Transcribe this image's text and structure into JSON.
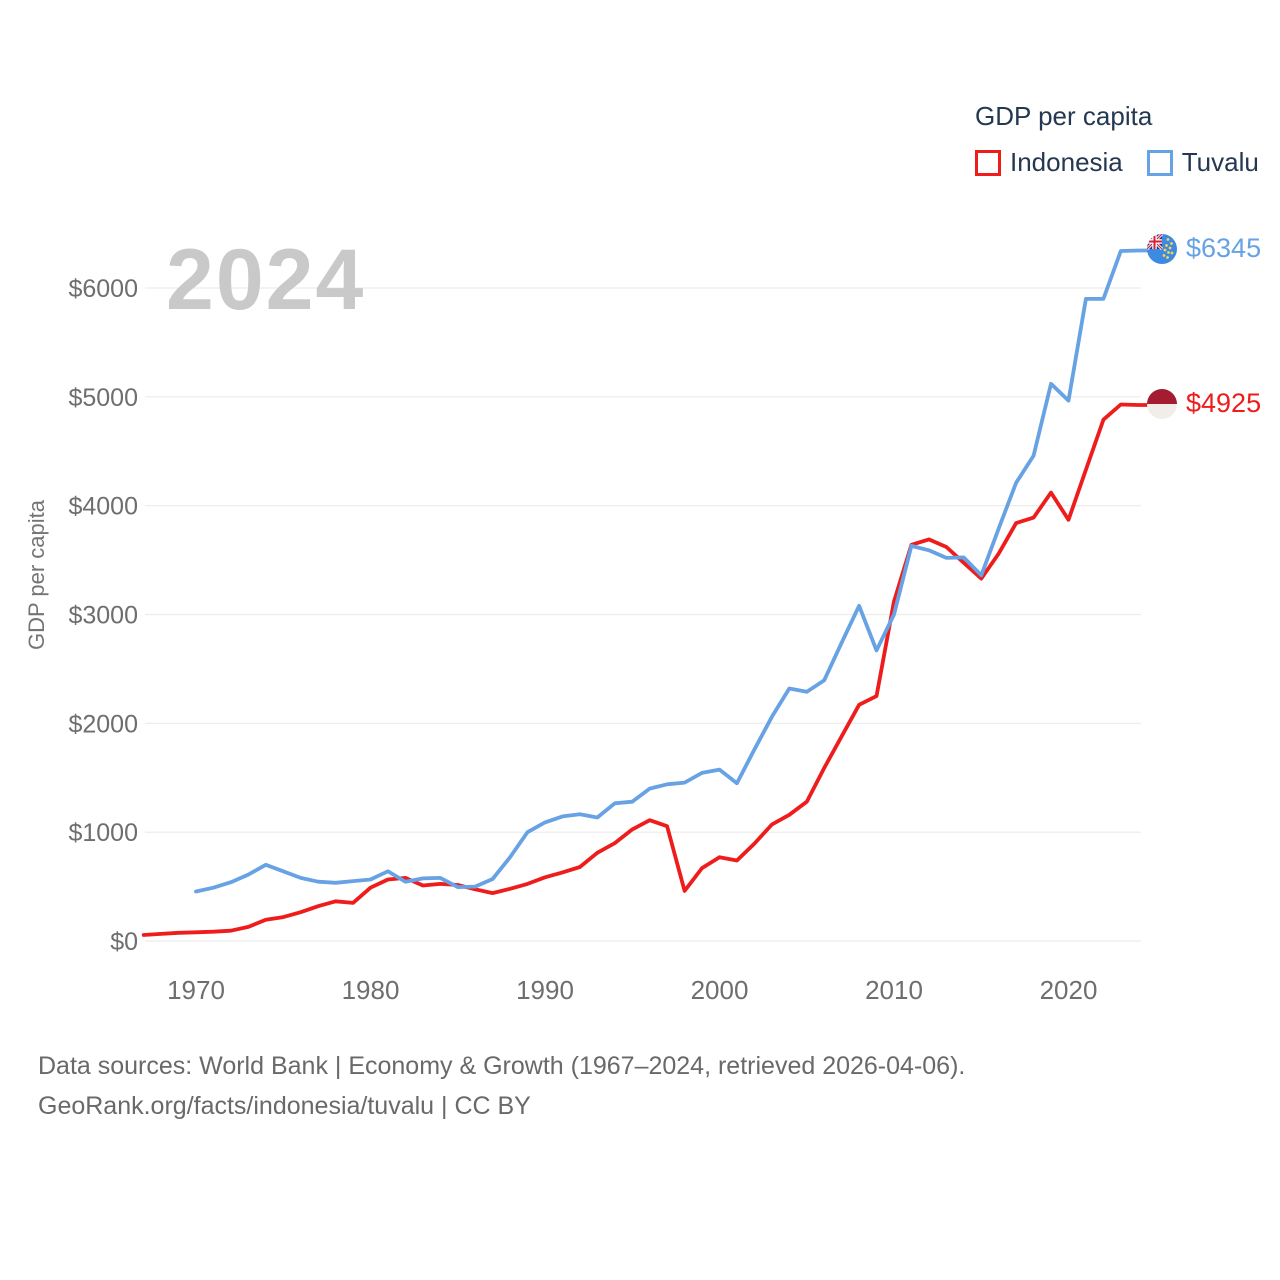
{
  "legend": {
    "title": "GDP per capita",
    "series": [
      {
        "label": "Indonesia",
        "color": "#ee1c1b"
      },
      {
        "label": "Tuvalu",
        "color": "#67a2e4"
      }
    ]
  },
  "watermark": "2024",
  "y_axis": {
    "label": "GDP per capita"
  },
  "end_labels": {
    "tuvalu": {
      "value": "$6345"
    },
    "indonesia": {
      "value": "$4925"
    }
  },
  "footer": {
    "line1": "Data sources: World Bank | Economy & Growth (1967–2024, retrieved 2026-04-06).",
    "line2": "GeoRank.org/facts/indonesia/tuvalu | CC BY"
  },
  "chart_data": {
    "type": "line",
    "title": "GDP per capita",
    "xlabel": "",
    "ylabel": "GDP per capita",
    "ylim": [
      0,
      6500
    ],
    "yticks": [
      0,
      1000,
      2000,
      3000,
      4000,
      5000,
      6000
    ],
    "ytick_labels": [
      "$0",
      "$1000",
      "$2000",
      "$3000",
      "$4000",
      "$5000",
      "$6000"
    ],
    "xticks": [
      1970,
      1980,
      1990,
      2000,
      2010,
      2020
    ],
    "grid": "horizontal",
    "legend_position": "top-right",
    "watermark": "2024",
    "series": [
      {
        "name": "Indonesia",
        "color": "#ee1c1b",
        "start_year": 1967,
        "end_year": 2024,
        "end_label": "$4925",
        "values": [
          55,
          65,
          75,
          80,
          85,
          95,
          130,
          195,
          220,
          265,
          320,
          365,
          350,
          490,
          565,
          580,
          510,
          525,
          515,
          475,
          440,
          480,
          525,
          585,
          630,
          680,
          810,
          900,
          1025,
          1110,
          1055,
          460,
          670,
          770,
          740,
          895,
          1070,
          1160,
          1280,
          1590,
          1880,
          2170,
          2250,
          3120,
          3640,
          3690,
          3620,
          3475,
          3330,
          3560,
          3840,
          3890,
          4120,
          3870,
          4330,
          4790,
          4930,
          4925
        ]
      },
      {
        "name": "Tuvalu",
        "color": "#67a2e4",
        "start_year": 1970,
        "end_year": 2024,
        "end_label": "$6345",
        "values": [
          455,
          490,
          540,
          610,
          700,
          640,
          580,
          545,
          535,
          550,
          565,
          640,
          545,
          575,
          580,
          495,
          500,
          570,
          770,
          1000,
          1090,
          1145,
          1165,
          1135,
          1265,
          1280,
          1400,
          1440,
          1455,
          1545,
          1575,
          1450,
          1760,
          2060,
          2320,
          2290,
          2395,
          2740,
          3080,
          2670,
          3000,
          3630,
          3590,
          3520,
          3525,
          3360,
          3790,
          4210,
          4460,
          5120,
          4965,
          5900,
          5900,
          6340,
          6345
        ]
      }
    ]
  }
}
